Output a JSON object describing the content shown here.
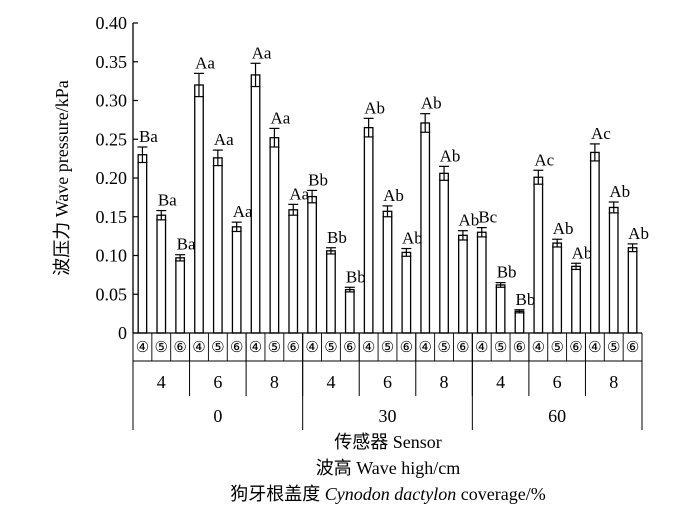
{
  "chart_data": {
    "type": "bar",
    "ylabel": "波压力 Wave pressure/kPa",
    "ylim": [
      0,
      0.4
    ],
    "yticks": [
      "0",
      "0.05",
      "0.10",
      "0.15",
      "0.20",
      "0.25",
      "0.30",
      "0.35",
      "0.40"
    ],
    "xlabel_lines": [
      "传感器 Sensor",
      "波高 Wave high/cm",
      "狗牙根盖度 Cynodon dactylon coverage/%"
    ],
    "xlabel_italic_part": "Cynodon dactylon",
    "sensors": [
      "④",
      "⑤",
      "⑥"
    ],
    "coverages": [
      {
        "label": "0",
        "heights": [
          {
            "label": "4",
            "bars": [
              {
                "value": 0.23,
                "err": 0.01,
                "label": "Ba"
              },
              {
                "value": 0.152,
                "err": 0.006,
                "label": "Ba"
              },
              {
                "value": 0.097,
                "err": 0.004,
                "label": "Ba"
              }
            ]
          },
          {
            "label": "6",
            "bars": [
              {
                "value": 0.32,
                "err": 0.015,
                "label": "Aa"
              },
              {
                "value": 0.226,
                "err": 0.01,
                "label": "Aa"
              },
              {
                "value": 0.137,
                "err": 0.006,
                "label": "Aa"
              }
            ]
          },
          {
            "label": "8",
            "bars": [
              {
                "value": 0.333,
                "err": 0.015,
                "label": "Aa"
              },
              {
                "value": 0.252,
                "err": 0.012,
                "label": "Aa"
              },
              {
                "value": 0.159,
                "err": 0.007,
                "label": "Aa"
              }
            ]
          }
        ]
      },
      {
        "label": "30",
        "heights": [
          {
            "label": "4",
            "bars": [
              {
                "value": 0.176,
                "err": 0.008,
                "label": "Bb"
              },
              {
                "value": 0.106,
                "err": 0.004,
                "label": "Bb"
              },
              {
                "value": 0.056,
                "err": 0.003,
                "label": "Bb"
              }
            ]
          },
          {
            "label": "6",
            "bars": [
              {
                "value": 0.265,
                "err": 0.012,
                "label": "Ab"
              },
              {
                "value": 0.157,
                "err": 0.007,
                "label": "Ab"
              },
              {
                "value": 0.104,
                "err": 0.005,
                "label": "Ab"
              }
            ]
          },
          {
            "label": "8",
            "bars": [
              {
                "value": 0.271,
                "err": 0.012,
                "label": "Ab"
              },
              {
                "value": 0.206,
                "err": 0.009,
                "label": "Ab"
              },
              {
                "value": 0.126,
                "err": 0.006,
                "label": "Ab"
              }
            ]
          }
        ]
      },
      {
        "label": "60",
        "heights": [
          {
            "label": "4",
            "bars": [
              {
                "value": 0.13,
                "err": 0.006,
                "label": "Bc"
              },
              {
                "value": 0.062,
                "err": 0.003,
                "label": "Bb"
              },
              {
                "value": 0.028,
                "err": 0.002,
                "label": "Bb"
              }
            ]
          },
          {
            "label": "6",
            "bars": [
              {
                "value": 0.201,
                "err": 0.009,
                "label": "Ac"
              },
              {
                "value": 0.116,
                "err": 0.005,
                "label": "Ab"
              },
              {
                "value": 0.086,
                "err": 0.004,
                "label": "Ab"
              }
            ]
          },
          {
            "label": "8",
            "bars": [
              {
                "value": 0.233,
                "err": 0.011,
                "label": "Ac"
              },
              {
                "value": 0.162,
                "err": 0.007,
                "label": "Ab"
              },
              {
                "value": 0.11,
                "err": 0.005,
                "label": "Ab"
              }
            ]
          }
        ]
      }
    ]
  }
}
